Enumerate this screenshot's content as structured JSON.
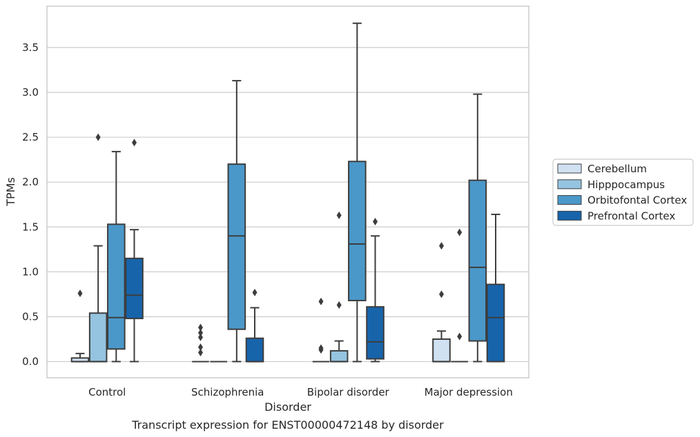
{
  "caption": "Transcript expression for ENST00000472148 by disorder",
  "chart_data": {
    "type": "box",
    "xlabel": "Disorder",
    "ylabel": "TPMs",
    "ylim": [
      -0.18,
      3.96
    ],
    "y_ticks": [
      "0.0",
      "0.5",
      "1.0",
      "1.5",
      "2.0",
      "2.5",
      "3.0",
      "3.5"
    ],
    "grid": "horizontal",
    "legend_placement": "right",
    "categories": [
      "Control",
      "Schizophrenia",
      "Bipolar disorder",
      "Major depression"
    ],
    "series": [
      {
        "name": "Cerebellum",
        "color": "#d0e1f2",
        "boxes": [
          {
            "whislo": 0.0,
            "q1": 0.0,
            "med": 0.0,
            "q3": 0.04,
            "whishi": 0.09,
            "fliers": [
              0.76
            ]
          },
          {
            "whislo": 0.0,
            "q1": 0.0,
            "med": 0.0,
            "q3": 0.0,
            "whishi": 0.0,
            "fliers": [
              0.1,
              0.16,
              0.27,
              0.32,
              0.38
            ]
          },
          {
            "whislo": 0.0,
            "q1": 0.0,
            "med": 0.0,
            "q3": 0.0,
            "whishi": 0.0,
            "fliers": [
              0.13,
              0.15,
              0.67
            ]
          },
          {
            "whislo": 0.0,
            "q1": 0.0,
            "med": 0.0,
            "q3": 0.25,
            "whishi": 0.34,
            "fliers": [
              0.75,
              1.29
            ]
          }
        ]
      },
      {
        "name": "Hipppocampus",
        "color": "#94c4df",
        "boxes": [
          {
            "whislo": 0.0,
            "q1": 0.0,
            "med": 0.0,
            "q3": 0.54,
            "whishi": 1.29,
            "fliers": [
              2.5
            ]
          },
          {
            "whislo": 0.0,
            "q1": 0.0,
            "med": 0.0,
            "q3": 0.0,
            "whishi": 0.0,
            "fliers": []
          },
          {
            "whislo": 0.0,
            "q1": 0.0,
            "med": 0.0,
            "q3": 0.12,
            "whishi": 0.23,
            "fliers": [
              0.63,
              1.63
            ]
          },
          {
            "whislo": 0.0,
            "q1": 0.0,
            "med": 0.0,
            "q3": 0.0,
            "whishi": 0.0,
            "fliers": [
              0.28,
              1.44
            ]
          }
        ]
      },
      {
        "name": "Orbitofontal Cortex",
        "color": "#4a98c9",
        "boxes": [
          {
            "whislo": 0.0,
            "q1": 0.14,
            "med": 0.49,
            "q3": 1.53,
            "whishi": 2.34,
            "fliers": []
          },
          {
            "whislo": 0.0,
            "q1": 0.36,
            "med": 1.4,
            "q3": 2.2,
            "whishi": 3.13,
            "fliers": []
          },
          {
            "whislo": 0.0,
            "q1": 0.68,
            "med": 1.31,
            "q3": 2.23,
            "whishi": 3.77,
            "fliers": []
          },
          {
            "whislo": 0.0,
            "q1": 0.23,
            "med": 1.05,
            "q3": 2.02,
            "whishi": 2.98,
            "fliers": []
          }
        ]
      },
      {
        "name": "Prefrontal Cortex",
        "color": "#1764ab",
        "boxes": [
          {
            "whislo": 0.0,
            "q1": 0.48,
            "med": 0.74,
            "q3": 1.15,
            "whishi": 1.47,
            "fliers": [
              2.44
            ]
          },
          {
            "whislo": 0.0,
            "q1": 0.0,
            "med": 0.0,
            "q3": 0.26,
            "whishi": 0.6,
            "fliers": [
              0.77
            ]
          },
          {
            "whislo": 0.0,
            "q1": 0.03,
            "med": 0.22,
            "q3": 0.61,
            "whishi": 1.4,
            "fliers": [
              1.56
            ]
          },
          {
            "whislo": 0.0,
            "q1": 0.0,
            "med": 0.49,
            "q3": 0.86,
            "whishi": 1.64,
            "fliers": []
          }
        ]
      }
    ]
  }
}
